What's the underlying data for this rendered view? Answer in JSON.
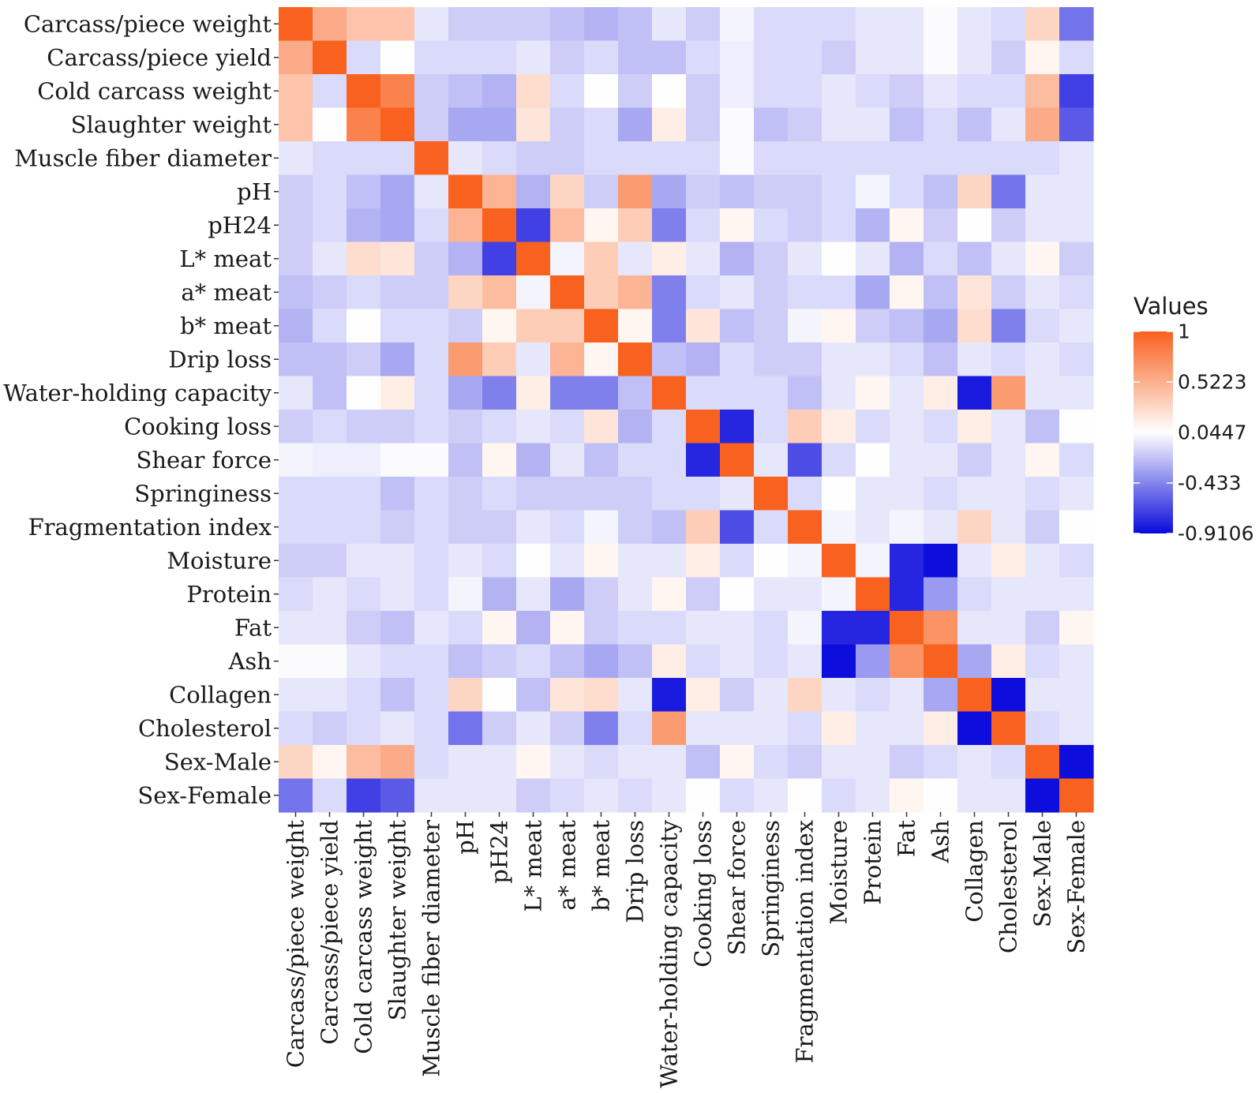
{
  "chart_data": {
    "type": "heatmap",
    "title": "",
    "xlabel": "",
    "ylabel": "",
    "variables": [
      "Carcass/piece weight",
      "Carcass/piece yield",
      "Cold carcass weight",
      "Slaughter weight",
      "Muscle fiber diameter",
      "pH",
      "pH24",
      "L* meat",
      "a* meat",
      "b* meat",
      "Drip loss",
      "Water-holding capacity",
      "Cooking loss",
      "Shear force",
      "Springiness",
      "Fragmentation index",
      "Moisture",
      "Protein",
      "Fat",
      "Ash",
      "Collagen",
      "Cholesterol",
      "Sex-Male",
      "Sex-Female"
    ],
    "matrix": [
      [
        1,
        0.55,
        0.4,
        0.4,
        -0.05,
        -0.15,
        -0.15,
        -0.15,
        -0.2,
        -0.25,
        -0.2,
        -0.05,
        -0.15,
        0,
        -0.1,
        -0.1,
        -0.1,
        -0.05,
        -0.05,
        0.03,
        -0.05,
        -0.1,
        0.3,
        -0.5
      ],
      [
        0.55,
        1,
        -0.1,
        0.05,
        -0.1,
        -0.1,
        -0.1,
        -0.05,
        -0.15,
        -0.1,
        -0.2,
        -0.2,
        -0.1,
        -0.02,
        -0.1,
        -0.1,
        -0.15,
        -0.05,
        -0.05,
        0.03,
        -0.05,
        -0.15,
        0.1,
        -0.1
      ],
      [
        0.4,
        -0.1,
        1,
        0.8,
        -0.15,
        -0.2,
        -0.25,
        0.25,
        -0.1,
        0.05,
        -0.15,
        0.05,
        -0.15,
        -0.02,
        -0.1,
        -0.1,
        -0.05,
        -0.1,
        -0.15,
        -0.05,
        -0.1,
        -0.1,
        0.45,
        -0.7
      ],
      [
        0.4,
        0.05,
        0.8,
        1,
        -0.15,
        -0.3,
        -0.3,
        0.2,
        -0.15,
        -0.1,
        -0.3,
        0.15,
        -0.15,
        0.03,
        -0.2,
        -0.15,
        -0.05,
        -0.05,
        -0.2,
        -0.1,
        -0.2,
        -0.05,
        0.55,
        -0.6
      ],
      [
        -0.05,
        -0.1,
        -0.1,
        -0.1,
        1,
        -0.05,
        -0.1,
        -0.15,
        -0.15,
        -0.1,
        -0.1,
        -0.1,
        -0.1,
        0.03,
        -0.1,
        -0.1,
        -0.1,
        -0.1,
        -0.1,
        -0.1,
        -0.1,
        -0.1,
        -0.1,
        -0.05
      ],
      [
        -0.15,
        -0.1,
        -0.2,
        -0.3,
        -0.05,
        1,
        0.5,
        -0.25,
        0.3,
        -0.15,
        0.65,
        -0.3,
        -0.15,
        -0.2,
        -0.15,
        -0.15,
        -0.1,
        0,
        -0.1,
        -0.2,
        0.3,
        -0.5,
        -0.05,
        -0.05
      ],
      [
        -0.15,
        -0.1,
        -0.25,
        -0.3,
        -0.1,
        0.5,
        1,
        -0.7,
        0.45,
        0.1,
        0.35,
        -0.45,
        -0.1,
        0.1,
        -0.1,
        -0.15,
        -0.1,
        -0.25,
        0.1,
        -0.15,
        0.05,
        -0.15,
        -0.05,
        -0.05
      ],
      [
        -0.15,
        -0.05,
        0.25,
        0.2,
        -0.15,
        -0.25,
        -0.7,
        1,
        0,
        0.35,
        -0.05,
        0.15,
        -0.05,
        -0.25,
        -0.15,
        -0.05,
        0.05,
        -0.05,
        -0.25,
        -0.1,
        -0.2,
        -0.05,
        0.1,
        -0.15
      ],
      [
        -0.2,
        -0.15,
        -0.1,
        -0.15,
        -0.15,
        0.3,
        0.45,
        0,
        1,
        0.35,
        0.5,
        -0.45,
        -0.1,
        -0.05,
        -0.15,
        -0.1,
        -0.1,
        -0.3,
        0.1,
        -0.2,
        0.2,
        -0.15,
        -0.05,
        -0.1
      ],
      [
        -0.25,
        -0.1,
        0.05,
        -0.1,
        -0.1,
        -0.15,
        0.1,
        0.35,
        0.35,
        1,
        0.1,
        -0.45,
        0.2,
        -0.2,
        -0.15,
        0,
        0.1,
        -0.15,
        -0.2,
        -0.3,
        0.25,
        -0.45,
        -0.1,
        -0.05
      ],
      [
        -0.2,
        -0.2,
        -0.15,
        -0.3,
        -0.1,
        0.65,
        0.35,
        -0.05,
        0.5,
        0.1,
        1,
        -0.2,
        -0.25,
        -0.1,
        -0.15,
        -0.15,
        -0.05,
        -0.05,
        -0.1,
        -0.2,
        -0.05,
        -0.1,
        -0.05,
        -0.1
      ],
      [
        -0.05,
        -0.2,
        0.05,
        0.15,
        -0.1,
        -0.3,
        -0.45,
        0.15,
        -0.45,
        -0.45,
        -0.2,
        1,
        -0.1,
        -0.1,
        -0.1,
        -0.2,
        -0.05,
        0.1,
        -0.05,
        0.15,
        -0.85,
        0.65,
        -0.05,
        -0.05
      ],
      [
        -0.15,
        -0.1,
        -0.15,
        -0.15,
        -0.1,
        -0.15,
        -0.1,
        -0.05,
        -0.1,
        0.2,
        -0.25,
        -0.1,
        1,
        -0.8,
        -0.1,
        0.35,
        0.15,
        -0.1,
        -0.05,
        -0.1,
        0.15,
        -0.05,
        -0.2,
        0.05
      ],
      [
        0,
        -0.02,
        -0.02,
        0.03,
        0.03,
        -0.2,
        0.1,
        -0.25,
        -0.05,
        -0.2,
        -0.1,
        -0.1,
        -0.8,
        1,
        -0.05,
        -0.65,
        -0.1,
        0.05,
        -0.05,
        -0.05,
        -0.15,
        -0.05,
        0.1,
        -0.1
      ],
      [
        -0.1,
        -0.1,
        -0.1,
        -0.2,
        -0.1,
        -0.15,
        -0.1,
        -0.15,
        -0.15,
        -0.15,
        -0.15,
        -0.1,
        -0.1,
        -0.05,
        1,
        -0.1,
        0.05,
        -0.05,
        -0.05,
        -0.1,
        -0.05,
        -0.05,
        -0.1,
        -0.05
      ],
      [
        -0.1,
        -0.1,
        -0.1,
        -0.15,
        -0.1,
        -0.15,
        -0.15,
        -0.05,
        -0.1,
        0,
        -0.15,
        -0.2,
        0.35,
        -0.65,
        -0.1,
        1,
        0,
        -0.05,
        0,
        -0.05,
        0.3,
        -0.05,
        -0.15,
        0.05
      ],
      [
        -0.15,
        -0.15,
        -0.05,
        -0.05,
        -0.1,
        -0.05,
        -0.1,
        0.05,
        -0.05,
        0.1,
        -0.05,
        -0.05,
        0.15,
        -0.1,
        0.05,
        0,
        1,
        0,
        -0.8,
        -0.9,
        -0.05,
        0.15,
        -0.05,
        -0.1
      ],
      [
        -0.1,
        -0.05,
        -0.1,
        -0.05,
        -0.1,
        0,
        -0.25,
        -0.05,
        -0.3,
        -0.15,
        -0.05,
        0.1,
        -0.15,
        0.05,
        -0.05,
        -0.05,
        0,
        1,
        -0.8,
        -0.35,
        -0.1,
        -0.05,
        -0.05,
        -0.05
      ],
      [
        -0.05,
        -0.05,
        -0.15,
        -0.2,
        -0.05,
        -0.1,
        0.1,
        -0.25,
        0.1,
        -0.15,
        -0.1,
        -0.1,
        -0.05,
        -0.05,
        -0.1,
        0,
        -0.8,
        -0.8,
        1,
        0.7,
        -0.05,
        -0.05,
        -0.15,
        0.1
      ],
      [
        0.03,
        0.03,
        -0.05,
        -0.1,
        -0.1,
        -0.2,
        -0.15,
        -0.1,
        -0.2,
        -0.3,
        -0.2,
        0.15,
        -0.1,
        -0.05,
        -0.1,
        -0.05,
        -0.9,
        -0.35,
        0.7,
        1,
        -0.3,
        0.15,
        -0.1,
        -0.05
      ],
      [
        -0.05,
        -0.05,
        -0.1,
        -0.2,
        -0.1,
        0.3,
        0.05,
        -0.2,
        0.2,
        0.25,
        -0.05,
        -0.85,
        0.15,
        -0.15,
        -0.05,
        0.3,
        -0.05,
        -0.1,
        -0.05,
        -0.3,
        1,
        -0.9,
        -0.05,
        -0.05
      ],
      [
        -0.1,
        -0.15,
        -0.1,
        -0.05,
        -0.1,
        -0.5,
        -0.15,
        -0.05,
        -0.15,
        -0.45,
        -0.1,
        0.65,
        -0.05,
        -0.05,
        -0.05,
        -0.1,
        0.15,
        -0.05,
        -0.05,
        0.15,
        -0.9,
        1,
        -0.1,
        -0.05
      ],
      [
        0.3,
        0.1,
        0.45,
        0.55,
        -0.1,
        -0.05,
        -0.05,
        0.1,
        -0.05,
        -0.1,
        -0.05,
        -0.05,
        -0.2,
        0.1,
        -0.1,
        -0.15,
        -0.05,
        -0.05,
        -0.15,
        -0.1,
        -0.05,
        -0.1,
        1,
        -0.9
      ],
      [
        -0.5,
        -0.1,
        -0.7,
        -0.6,
        -0.05,
        -0.05,
        -0.05,
        -0.15,
        -0.1,
        -0.05,
        -0.1,
        -0.05,
        0.05,
        -0.1,
        -0.05,
        0.05,
        -0.1,
        -0.05,
        0.1,
        0.05,
        -0.05,
        -0.05,
        -0.9,
        1
      ]
    ],
    "value_range": [
      -0.9106,
      1
    ],
    "colors": {
      "low": "#0a0adc",
      "mid": "#ffffff",
      "high": "#f9611e"
    },
    "legend": {
      "title": "Values",
      "position": "right",
      "breaks": [
        1,
        0.5223,
        0.0447,
        -0.433,
        -0.9106
      ],
      "labels": [
        "1",
        "0.5223",
        "0.0447",
        "-0.433",
        "-0.9106"
      ]
    }
  }
}
